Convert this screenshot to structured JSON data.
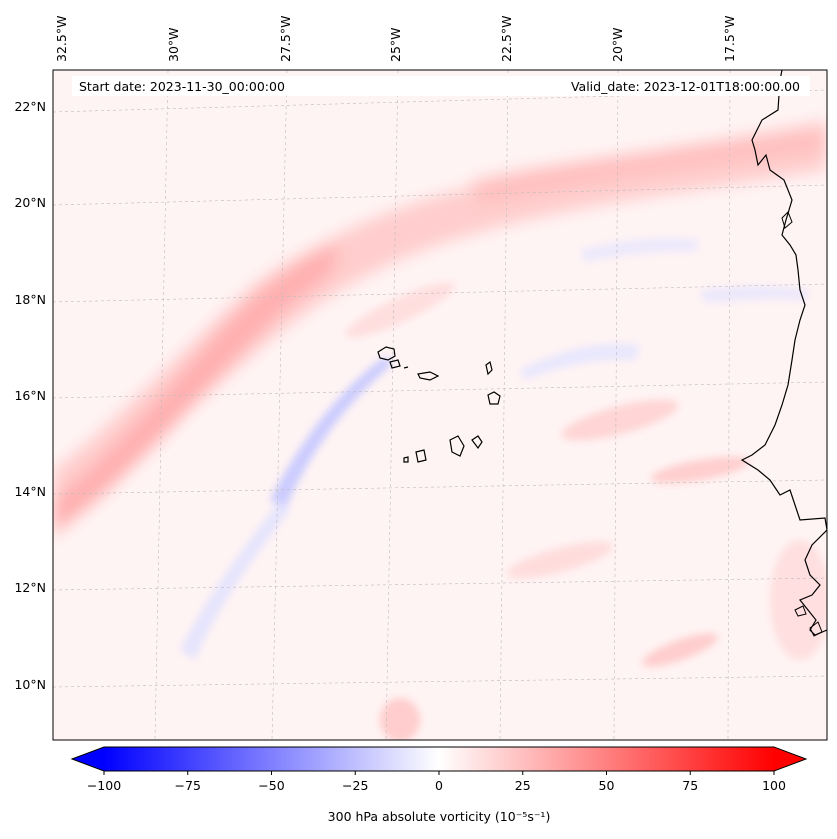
{
  "header": {
    "start_date": "Start date: 2023-11-30_00:00:00",
    "valid_date": "Valid_date: 2023-12-01T18:00:00.00"
  },
  "map": {
    "lon_labels": [
      "32.5°W",
      "30°W",
      "27.5°W",
      "25°W",
      "22.5°W",
      "20°W",
      "17.5°W"
    ],
    "lat_labels": [
      "22°N",
      "20°N",
      "18°N",
      "16°N",
      "14°N",
      "12°N",
      "10°N"
    ],
    "field_colors": {
      "positive": "#ff0000",
      "negative": "#0000ff",
      "neutral": "#ffffff",
      "coastline": "#000000"
    }
  },
  "colorbar": {
    "label": "300 hPa absolute vorticity (10⁻⁵s⁻¹)",
    "vmin": -100,
    "vmax": 100,
    "ticks": [
      "−100",
      "−75",
      "−50",
      "−25",
      "0",
      "25",
      "50",
      "75",
      "100"
    ],
    "extend": "both"
  }
}
